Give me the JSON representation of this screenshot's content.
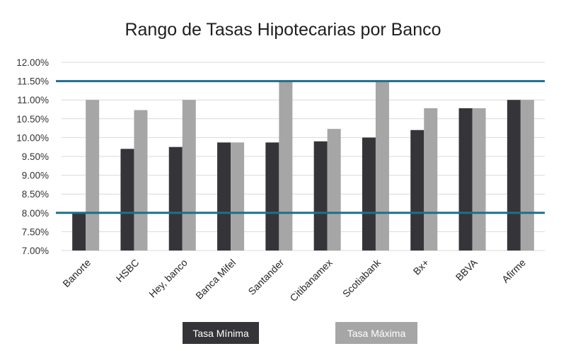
{
  "chart_data": {
    "type": "bar",
    "title": "Rango de Tasas Hipotecarias por Banco",
    "xlabel": "",
    "ylabel": "",
    "categories": [
      "Banorte",
      "HSBC",
      "Hey, banco",
      "Banca Mifel",
      "Santander",
      "Citibanamex",
      "Scotiabank",
      "Bx+",
      "BBVA",
      "Afirme"
    ],
    "series": [
      {
        "name": "Tasa Mínima",
        "color": "#353539",
        "values": [
          8.0,
          9.7,
          9.75,
          9.87,
          9.87,
          9.9,
          10.0,
          10.2,
          10.78,
          11.0
        ]
      },
      {
        "name": "Tasa Máxima",
        "color": "#a6a6a6",
        "values": [
          11.0,
          10.73,
          11.0,
          9.87,
          11.5,
          10.23,
          11.5,
          10.78,
          10.78,
          11.0
        ]
      }
    ],
    "ylim": [
      7.0,
      12.0
    ],
    "yticks": [
      "7.00%",
      "7.50%",
      "8.00%",
      "8.50%",
      "9.00%",
      "9.50%",
      "10.00%",
      "10.50%",
      "11.00%",
      "11.50%",
      "12.00%"
    ],
    "yticks_values": [
      7.0,
      7.5,
      8.0,
      8.5,
      9.0,
      9.5,
      10.0,
      10.5,
      11.0,
      11.5,
      12.0
    ],
    "reference_lines": [
      {
        "value": 11.5,
        "color": "#1f6e8c"
      },
      {
        "value": 8.0,
        "color": "#1f6e8c"
      }
    ],
    "grid": true,
    "legend_position": "bottom",
    "legend": [
      {
        "label": "Tasa Mínima",
        "bg": "#353539",
        "text_color": "#ffffff"
      },
      {
        "label": "Tasa Máxima",
        "bg": "#a6a6a6",
        "text_color": "#ffffff"
      }
    ]
  }
}
